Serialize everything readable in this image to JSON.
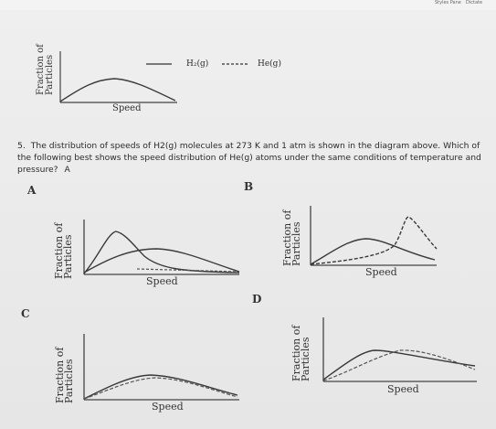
{
  "toolbar": {
    "styles_label": "Styles\nPane",
    "dictate_label": "Dictate"
  },
  "top_graph": {
    "y_label_line1": "Fraction of",
    "y_label_line2": "Particles",
    "x_label": "Speed",
    "legend": {
      "solid_label": "H₂(g)",
      "dashed_label": "He(g)"
    }
  },
  "question": {
    "number": "5.",
    "text": "The distribution of speeds of H2(g) molecules at 273 K and 1 atm is shown in the diagram above. Which of the following best shows the speed distribution of He(g) atoms under the same conditions of temperature and pressure?",
    "answer": "A"
  },
  "options": {
    "A": {
      "letter": "A",
      "y_label_line1": "Fraction of",
      "y_label_line2": "Particles",
      "x_label": "Speed"
    },
    "B": {
      "letter": "B",
      "y_label_line1": "Fraction of",
      "y_label_line2": "Particles",
      "x_label": "Speed"
    },
    "C": {
      "letter": "C",
      "y_label_line1": "Fraction of",
      "y_label_line2": "Particles",
      "x_label": "Speed"
    },
    "D": {
      "letter": "D",
      "y_label_line1": "Fraction of",
      "y_label_line2": "Particles",
      "x_label": "Speed"
    }
  },
  "colors": {
    "curve": "#3a3a3a",
    "axis": "#444444",
    "background": "#e9e9e9"
  }
}
